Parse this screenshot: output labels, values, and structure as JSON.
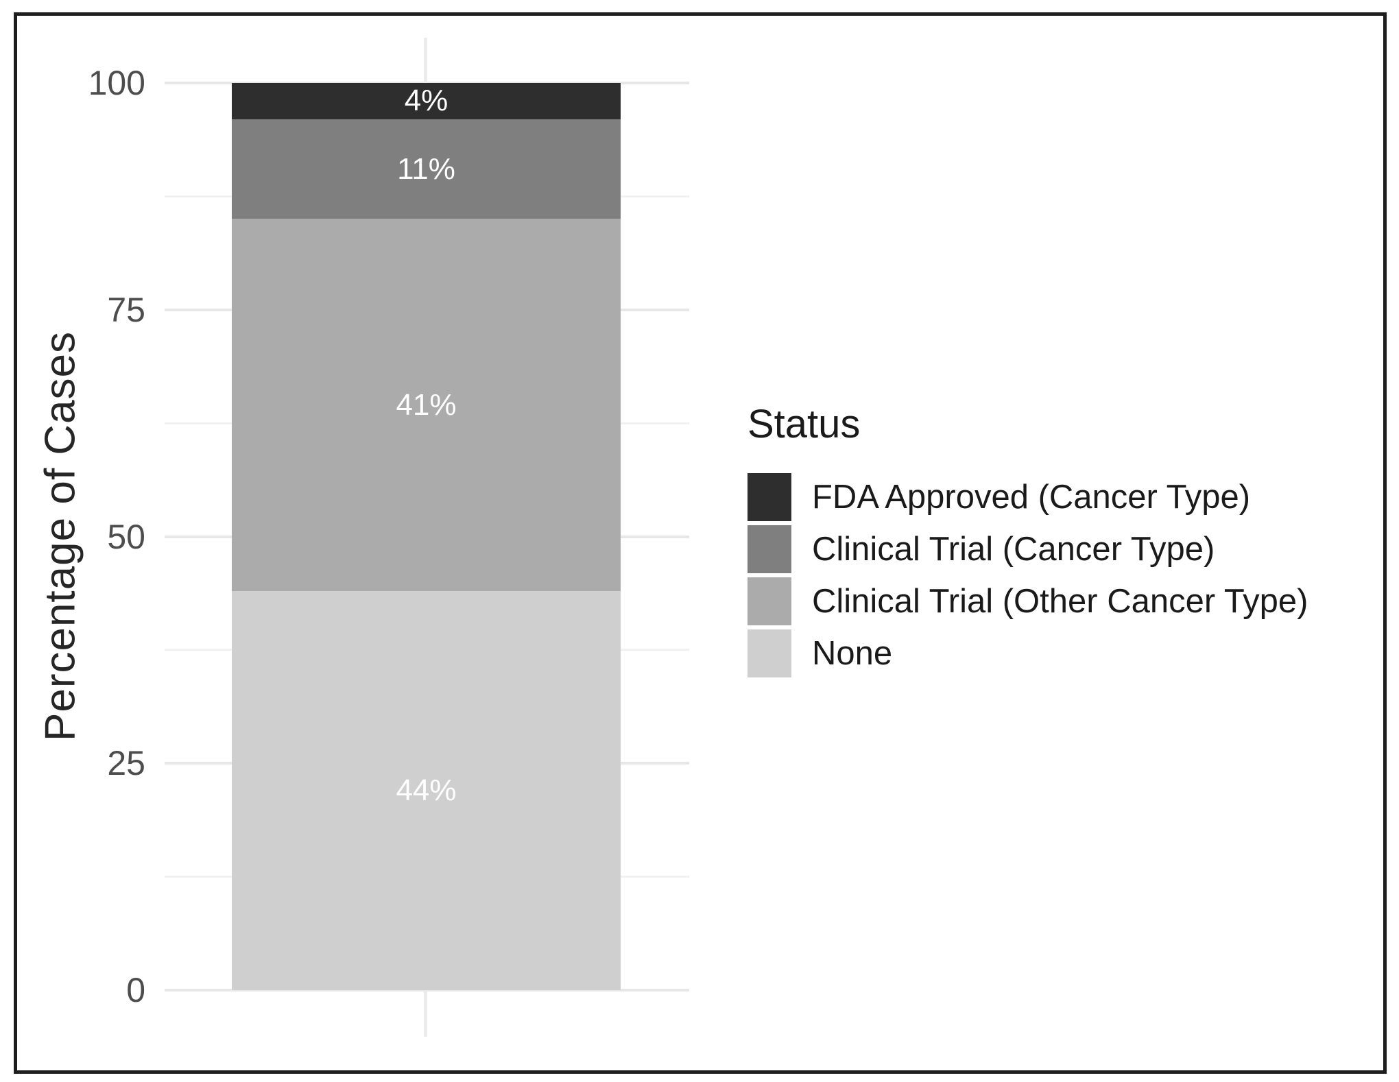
{
  "figure": {
    "background_color": "#ffffff",
    "frame_color": "#1e1e1e"
  },
  "chart_data": {
    "type": "bar",
    "stacked": true,
    "orientation": "vertical",
    "title": "",
    "xlabel": "",
    "ylabel": "Percentage of Cases",
    "ylim": [
      0,
      100
    ],
    "grid": "major+minor",
    "categories": [
      ""
    ],
    "series": [
      {
        "name": "FDA Approved (Cancer Type)",
        "values": [
          4
        ],
        "display": "4%",
        "color": "#2e2e2e"
      },
      {
        "name": "Clinical Trial (Cancer Type)",
        "values": [
          11
        ],
        "display": "11%",
        "color": "#7f7f7f"
      },
      {
        "name": "Clinical Trial (Other Cancer Type)",
        "values": [
          41
        ],
        "display": "41%",
        "color": "#ababab"
      },
      {
        "name": "None",
        "values": [
          44
        ],
        "display": "44%",
        "color": "#cfcfcf"
      }
    ],
    "bar_label_color": "#ffffff",
    "y_axis": {
      "ticks": [
        {
          "value": 100,
          "label": "100"
        },
        {
          "value": 75,
          "label": "75"
        },
        {
          "value": 50,
          "label": "50"
        },
        {
          "value": 25,
          "label": "25"
        },
        {
          "value": 0,
          "label": "0"
        }
      ],
      "minor_ticks": [
        87.5,
        62.5,
        37.5,
        12.5
      ]
    },
    "legend": {
      "title": "Status",
      "position": "right"
    },
    "theme": {
      "major_gridline_color": "#e7e7e7",
      "minor_gridline_color": "#f1f1f1",
      "vertical_gridline_color": "#ececec",
      "tick_label_color": "#4d4d4d",
      "axis_title_color": "#262626",
      "legend_text_color": "#1a1a1a"
    }
  }
}
